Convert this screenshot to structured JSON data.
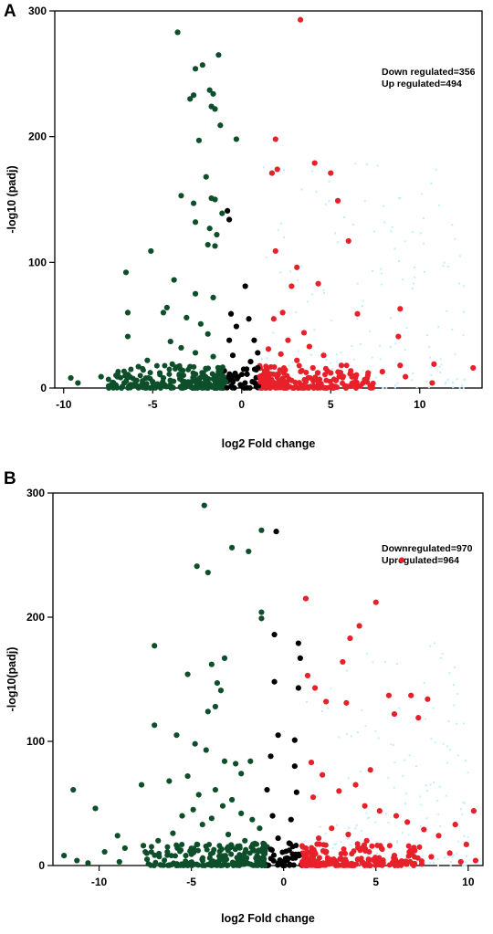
{
  "chart_data": [
    {
      "panel": "A",
      "type": "scatter",
      "xlabel": "log2 Fold change",
      "ylabel": "-log10 (padj)",
      "xlim": [
        -10.5,
        13.5
      ],
      "ylim": [
        0,
        300
      ],
      "xticks": [
        -10,
        -5,
        0,
        5,
        10
      ],
      "yticks": [
        0,
        100,
        200,
        300
      ],
      "annotations": [
        "Down regulated=356",
        "Up regulated=494"
      ],
      "colors": {
        "down": "#0d4f2a",
        "up": "#e8202a",
        "ns": "#000000",
        "cloud": "#bfeeff"
      },
      "series": [
        {
          "group": "down",
          "points": [
            [
              -3.6,
              283
            ],
            [
              -2.6,
              254
            ],
            [
              -1.3,
              265
            ],
            [
              -2.2,
              257
            ],
            [
              -1.8,
              237
            ],
            [
              -1.6,
              234
            ],
            [
              -2.7,
              233
            ],
            [
              -2.9,
              230
            ],
            [
              -1.7,
              224
            ],
            [
              -1.5,
              222
            ],
            [
              -1.2,
              209
            ],
            [
              -0.3,
              198
            ],
            [
              -2.4,
              197
            ],
            [
              -2.0,
              168
            ],
            [
              -3.4,
              153
            ],
            [
              -2.7,
              147
            ],
            [
              -1.7,
              151
            ],
            [
              -1.5,
              150
            ],
            [
              -1.1,
              139
            ],
            [
              -2.6,
              132
            ],
            [
              -1.8,
              127
            ],
            [
              -1.4,
              122
            ],
            [
              -1.9,
              114
            ],
            [
              -1.5,
              113
            ],
            [
              -5.1,
              109
            ],
            [
              -6.5,
              92
            ],
            [
              -3.8,
              86
            ],
            [
              -6.4,
              60
            ],
            [
              -4.4,
              60
            ],
            [
              -6.4,
              41
            ],
            [
              -5.8,
              17
            ],
            [
              -7.9,
              9
            ],
            [
              -9.6,
              8
            ],
            [
              -9.2,
              4
            ],
            [
              -7.3,
              3
            ],
            [
              -6.6,
              4
            ],
            [
              -5.9,
              6
            ],
            [
              -5.0,
              5
            ],
            [
              -4.4,
              8
            ],
            [
              -2.6,
              75
            ],
            [
              -1.6,
              72
            ],
            [
              -4.2,
              64
            ],
            [
              -3.1,
              56
            ],
            [
              -2.3,
              51
            ],
            [
              -1.9,
              43
            ],
            [
              -4.0,
              37
            ],
            [
              -3.4,
              32
            ],
            [
              -2.6,
              28
            ],
            [
              -1.6,
              25
            ],
            [
              -5.3,
              22
            ],
            [
              -3.9,
              19
            ],
            [
              -2.9,
              17
            ],
            [
              -2.0,
              15
            ],
            [
              -1.3,
              13
            ],
            [
              -4.6,
              12
            ],
            [
              -3.5,
              10
            ],
            [
              -2.7,
              8
            ],
            [
              -1.9,
              7
            ],
            [
              -1.1,
              6
            ],
            [
              -3.2,
              5
            ],
            [
              -2.3,
              4
            ],
            [
              -1.5,
              3
            ],
            [
              -0.9,
              5
            ],
            [
              -2.0,
              2
            ],
            [
              -1.2,
              1
            ]
          ]
        },
        {
          "group": "up",
          "points": [
            [
              3.3,
              293
            ],
            [
              1.9,
              198
            ],
            [
              4.1,
              179
            ],
            [
              5.0,
              171
            ],
            [
              2.0,
              174
            ],
            [
              1.7,
              171
            ],
            [
              5.4,
              149
            ],
            [
              6.0,
              117
            ],
            [
              1.9,
              109
            ],
            [
              3.1,
              96
            ],
            [
              2.8,
              81
            ],
            [
              4.3,
              83
            ],
            [
              8.9,
              63
            ],
            [
              6.5,
              59
            ],
            [
              8.8,
              41
            ],
            [
              10.8,
              19
            ],
            [
              13.0,
              16
            ],
            [
              8.9,
              18
            ],
            [
              7.1,
              12
            ],
            [
              10.7,
              4
            ],
            [
              5.0,
              12
            ],
            [
              4.0,
              16
            ],
            [
              3.1,
              22
            ],
            [
              2.2,
              27
            ],
            [
              1.5,
              31
            ],
            [
              2.6,
              38
            ],
            [
              3.5,
              44
            ],
            [
              1.8,
              55
            ],
            [
              2.3,
              60
            ],
            [
              3.8,
              33
            ],
            [
              4.6,
              26
            ],
            [
              5.6,
              18
            ],
            [
              6.2,
              10
            ],
            [
              1.4,
              14
            ],
            [
              2.0,
              9
            ],
            [
              2.8,
              6
            ],
            [
              3.6,
              5
            ],
            [
              4.3,
              3
            ],
            [
              1.3,
              3
            ],
            [
              1.1,
              6
            ],
            [
              2.4,
              2
            ],
            [
              5.3,
              6
            ],
            [
              7.9,
              13
            ],
            [
              9.2,
              9
            ]
          ]
        },
        {
          "group": "ns",
          "points": [
            [
              -0.8,
              141
            ],
            [
              -0.7,
              134
            ],
            [
              -0.6,
              59
            ],
            [
              -0.7,
              38
            ],
            [
              -0.5,
              26
            ],
            [
              -0.3,
              49
            ],
            [
              0.2,
              81
            ],
            [
              0.4,
              55
            ],
            [
              0.7,
              38
            ],
            [
              0.9,
              28
            ],
            [
              0.5,
              21
            ],
            [
              0.9,
              16
            ],
            [
              0.3,
              11
            ],
            [
              -0.2,
              9
            ],
            [
              -0.6,
              7
            ],
            [
              0.6,
              5
            ]
          ]
        }
      ]
    },
    {
      "panel": "B",
      "type": "scatter",
      "xlabel": "log2 Fold change",
      "ylabel": "-log10(padj)",
      "xlim": [
        -12.5,
        10.8
      ],
      "ylim": [
        0,
        300
      ],
      "xticks": [
        -10,
        -5,
        0,
        5,
        10
      ],
      "yticks": [
        0,
        100,
        200,
        300
      ],
      "annotations": [
        "Downregulated=970",
        "Upregulated=964"
      ],
      "colors": {
        "down": "#0d4f2a",
        "up": "#e8202a",
        "ns": "#000000",
        "cloud": "#bfeeff"
      },
      "series": [
        {
          "group": "down",
          "points": [
            [
              -4.3,
              290
            ],
            [
              -2.8,
              256
            ],
            [
              -1.9,
              253
            ],
            [
              -1.2,
              270
            ],
            [
              -4.7,
              241
            ],
            [
              -4.1,
              236
            ],
            [
              -1.2,
              204
            ],
            [
              -1.2,
              199
            ],
            [
              -3.2,
              167
            ],
            [
              -5.2,
              154
            ],
            [
              -3.9,
              162
            ],
            [
              -3.6,
              147
            ],
            [
              -3.4,
              141
            ],
            [
              -3.7,
              128
            ],
            [
              -4.1,
              124
            ],
            [
              -7.0,
              177
            ],
            [
              -7.0,
              113
            ],
            [
              -5.8,
              105
            ],
            [
              -4.8,
              98
            ],
            [
              -4.2,
              93
            ],
            [
              -3.2,
              84
            ],
            [
              -2.6,
              82
            ],
            [
              -1.8,
              84
            ],
            [
              -2.3,
              74
            ],
            [
              -5.2,
              72
            ],
            [
              -6.2,
              68
            ],
            [
              -7.7,
              65
            ],
            [
              -3.7,
              61
            ],
            [
              -4.6,
              57
            ],
            [
              -11.4,
              61
            ],
            [
              -10.2,
              46
            ],
            [
              -9.0,
              24
            ],
            [
              -11.9,
              8
            ],
            [
              -11.2,
              4
            ],
            [
              -9.7,
              11
            ],
            [
              -8.6,
              14
            ],
            [
              -7.6,
              16
            ],
            [
              -6.8,
              20
            ],
            [
              -6.0,
              26
            ],
            [
              -5.5,
              40
            ],
            [
              -4.9,
              45
            ],
            [
              -4.4,
              33
            ],
            [
              -3.9,
              38
            ],
            [
              -3.3,
              48
            ],
            [
              -2.8,
              53
            ],
            [
              -2.3,
              42
            ],
            [
              -1.7,
              37
            ],
            [
              -1.3,
              30
            ],
            [
              -3.0,
              25
            ],
            [
              -2.1,
              20
            ],
            [
              -4.7,
              17
            ],
            [
              -6.3,
              11
            ],
            [
              -5.3,
              8
            ],
            [
              -4.0,
              6
            ],
            [
              -3.1,
              5
            ],
            [
              -2.2,
              4
            ],
            [
              -1.5,
              6
            ],
            [
              -7.4,
              5
            ],
            [
              -8.9,
              3
            ],
            [
              -10.6,
              2
            ],
            [
              -0.9,
              15
            ],
            [
              -1.6,
              12
            ]
          ]
        },
        {
          "group": "up",
          "points": [
            [
              6.4,
              246
            ],
            [
              1.2,
              215
            ],
            [
              5.0,
              212
            ],
            [
              4.1,
              193
            ],
            [
              3.6,
              183
            ],
            [
              1.3,
              153
            ],
            [
              3.2,
              164
            ],
            [
              1.7,
              143
            ],
            [
              2.3,
              132
            ],
            [
              3.4,
              131
            ],
            [
              5.7,
              137
            ],
            [
              6.9,
              137
            ],
            [
              7.8,
              134
            ],
            [
              6.0,
              122
            ],
            [
              7.3,
              119
            ],
            [
              4.7,
              77
            ],
            [
              1.5,
              83
            ],
            [
              2.1,
              73
            ],
            [
              3.9,
              65
            ],
            [
              3.0,
              60
            ],
            [
              1.6,
              55
            ],
            [
              4.4,
              48
            ],
            [
              5.2,
              44
            ],
            [
              6.1,
              40
            ],
            [
              6.7,
              35
            ],
            [
              7.6,
              29
            ],
            [
              8.4,
              24
            ],
            [
              9.3,
              33
            ],
            [
              10.3,
              44
            ],
            [
              9.9,
              17
            ],
            [
              9.0,
              10
            ],
            [
              8.0,
              7
            ],
            [
              7.1,
              12
            ],
            [
              6.0,
              8
            ],
            [
              5.3,
              14
            ],
            [
              4.5,
              20
            ],
            [
              3.5,
              25
            ],
            [
              2.6,
              30
            ],
            [
              1.9,
              22
            ],
            [
              1.2,
              14
            ],
            [
              1.6,
              7
            ],
            [
              2.4,
              4
            ],
            [
              3.4,
              3
            ],
            [
              4.6,
              5
            ],
            [
              10.4,
              4
            ],
            [
              9.6,
              3
            ]
          ]
        },
        {
          "group": "ns",
          "points": [
            [
              -0.4,
              269
            ],
            [
              -0.5,
              186
            ],
            [
              -0.5,
              148
            ],
            [
              -0.3,
              105
            ],
            [
              -0.7,
              88
            ],
            [
              -0.9,
              61
            ],
            [
              -0.6,
              40
            ],
            [
              -0.3,
              22
            ],
            [
              -0.7,
              13
            ],
            [
              0.8,
              179
            ],
            [
              0.9,
              167
            ],
            [
              0.8,
              143
            ],
            [
              0.6,
              101
            ],
            [
              0.6,
              80
            ],
            [
              0.7,
              59
            ],
            [
              0.4,
              37
            ],
            [
              0.3,
              18
            ],
            [
              0.8,
              9
            ],
            [
              0.2,
              5
            ],
            [
              -0.2,
              4
            ]
          ]
        }
      ]
    }
  ]
}
